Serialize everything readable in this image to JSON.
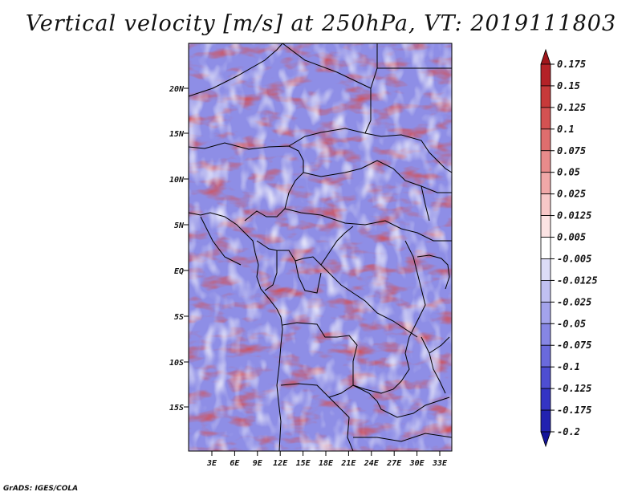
{
  "title": "Vertical velocity [m/s] at 250hPa, VT: 2019111803",
  "footer": "GrADS: IGES/COLA",
  "map": {
    "lat_labels": [
      "20N",
      "15N",
      "10N",
      "5N",
      "EQ",
      "5S",
      "10S",
      "15S"
    ],
    "lon_labels": [
      "3E",
      "6E",
      "9E",
      "12E",
      "15E",
      "18E",
      "21E",
      "24E",
      "27E",
      "30E",
      "33E"
    ]
  },
  "colorbar": {
    "labels": [
      "0.175",
      "0.15",
      "0.125",
      "0.1",
      "0.075",
      "0.05",
      "0.025",
      "0.0125",
      "0.005",
      "-0.005",
      "-0.0125",
      "-0.025",
      "-0.05",
      "-0.075",
      "-0.1",
      "-0.125",
      "-0.175",
      "-0.2"
    ],
    "colors": [
      "#a0161b",
      "#b42227",
      "#c73a3a",
      "#d45252",
      "#de6e6e",
      "#e88b8b",
      "#f0a8a8",
      "#f7c8c8",
      "#fbe3e3",
      "#ffffff",
      "#dcdcf7",
      "#c0c0f2",
      "#a3a3ec",
      "#8686e4",
      "#6a6adc",
      "#4e4ed2",
      "#3434c4",
      "#2222b0",
      "#14149a"
    ]
  }
}
